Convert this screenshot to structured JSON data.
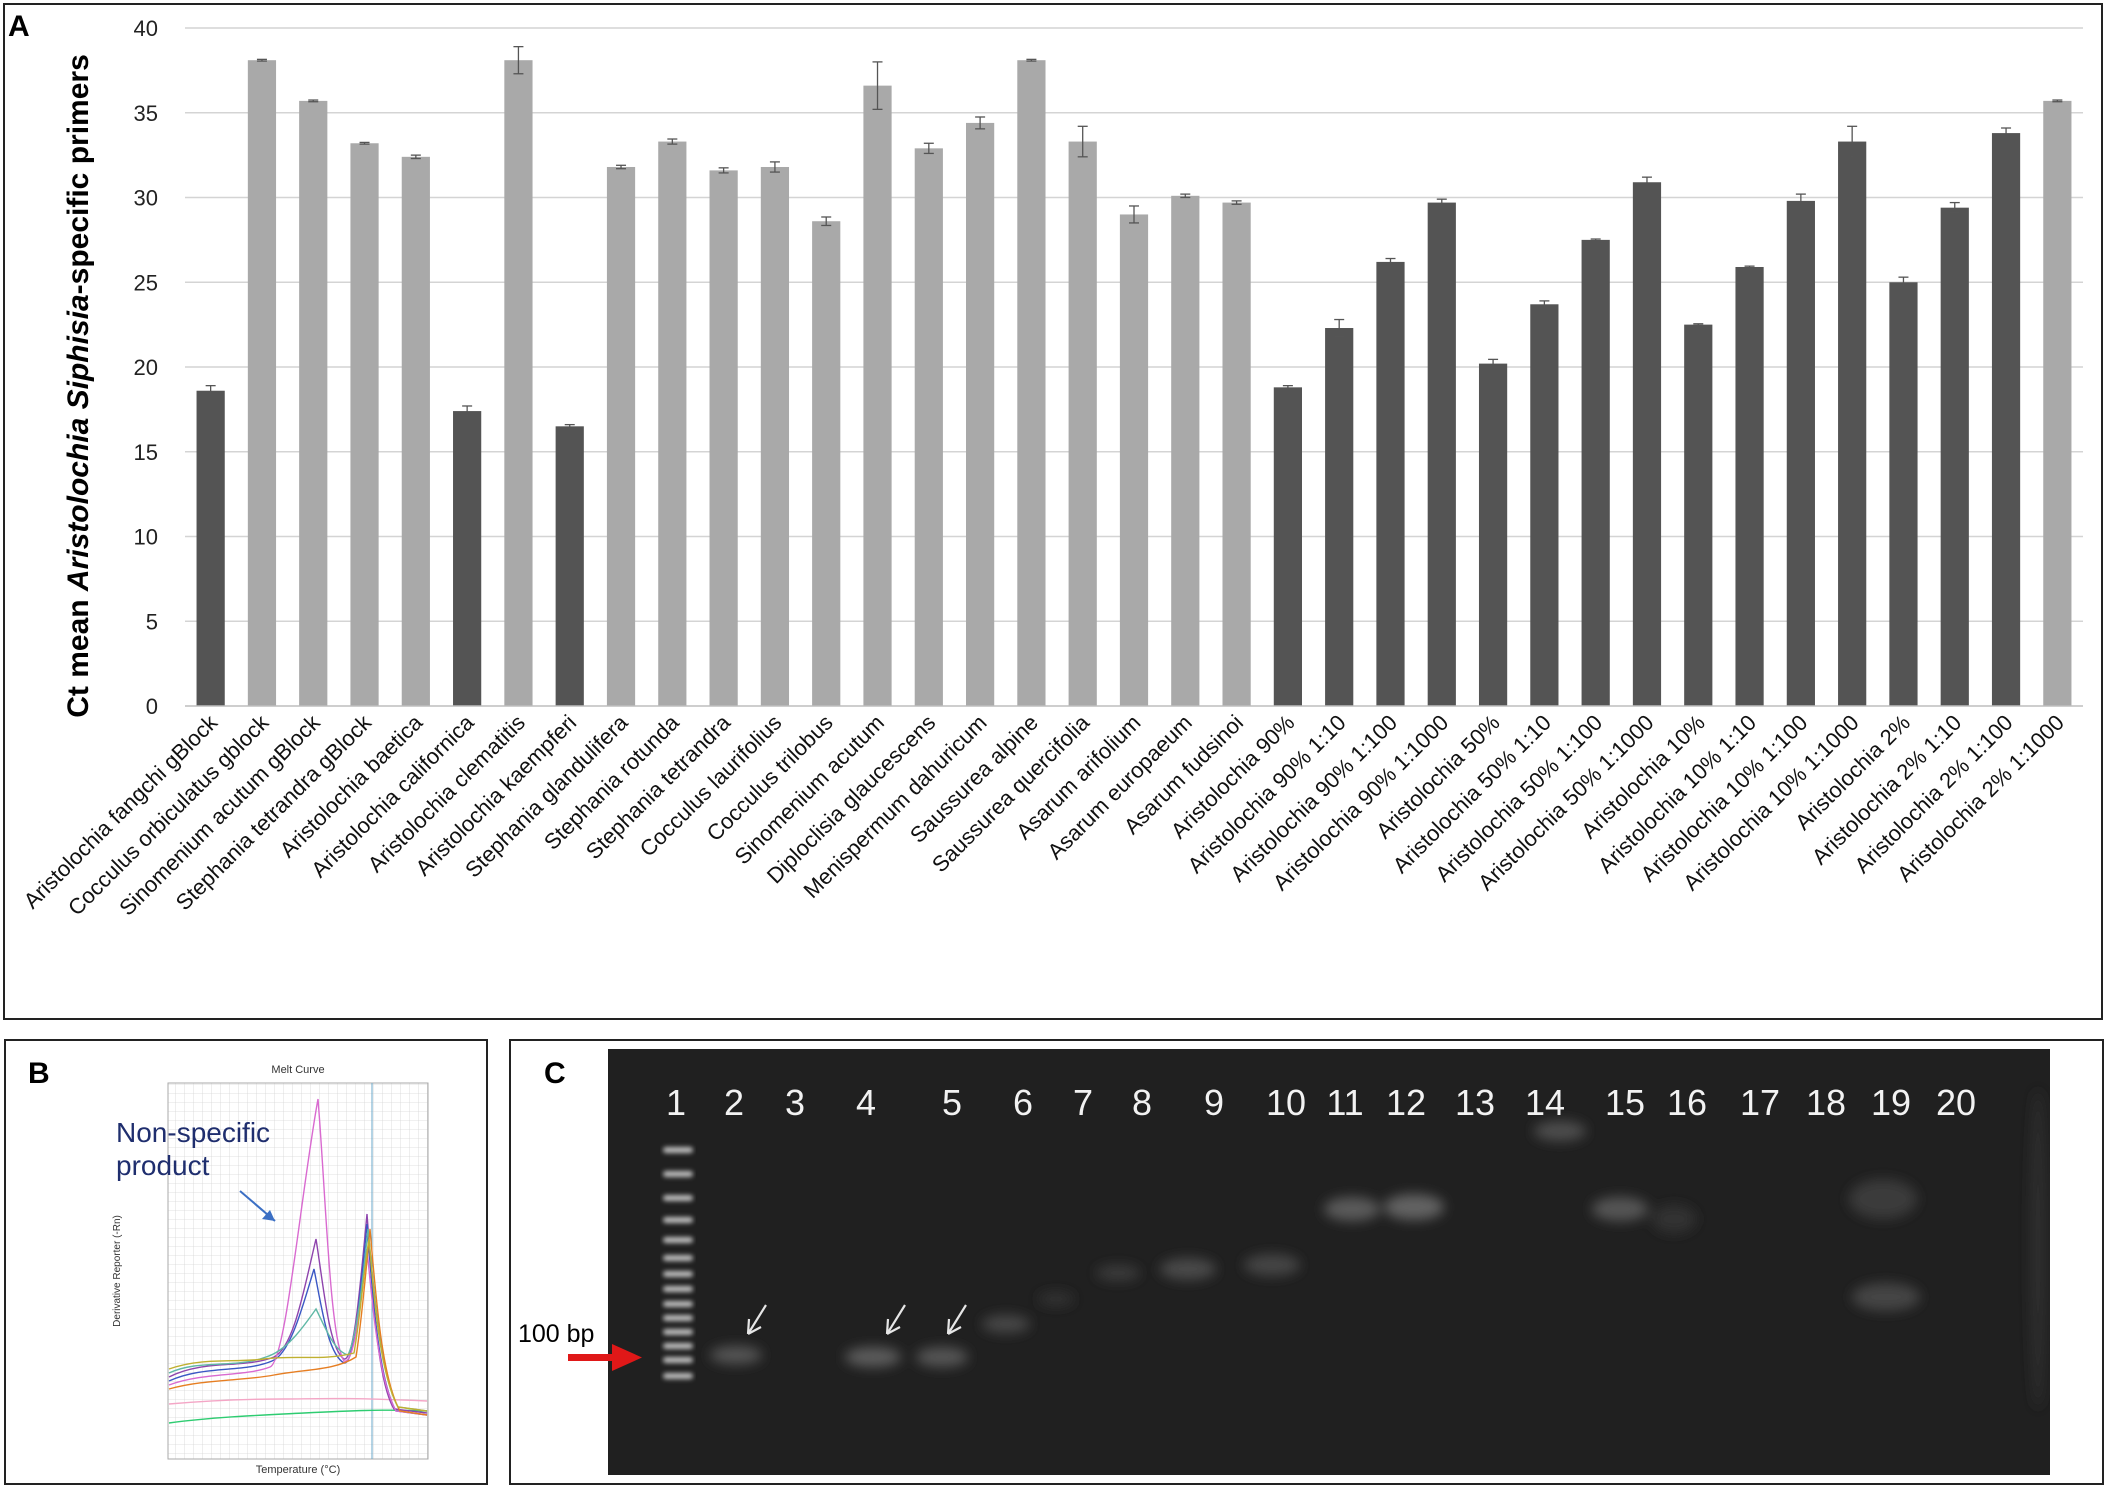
{
  "panels": {
    "a": "A",
    "b": "B",
    "c": "C"
  },
  "chart_data": {
    "type": "bar",
    "ylabel_parts": [
      "Ct mean ",
      "Aristolochia Siphisia",
      "-specific primers"
    ],
    "ylim": [
      0,
      40
    ],
    "yticks": [
      0,
      5,
      10,
      15,
      20,
      25,
      30,
      35,
      40
    ],
    "grid": true,
    "colors": {
      "dark": "#545454",
      "light": "#a9a9a9"
    },
    "categories": [
      "Aristolochia fangchi gBlock",
      "Cocculus orbiculatus gblock",
      "Sinomenium acutum gBlock",
      "Stephania tetrandra gBlock",
      "Aristolochia baetica",
      "Aristolochia californica",
      "Aristolochia clematitis",
      "Aristolochia kaempferi",
      "Stephania  glandulifera",
      "Stephania  rotunda",
      "Stephania tetrandra",
      "Cocculus  laurifolius",
      "Cocculus trilobus",
      "Sinomenium acutum",
      "Diploclisia glaucescens",
      "Menispermum dahuricum",
      "Saussurea alpine",
      "Saussurea quercifolia",
      "Asarum arifolium",
      "Asarum europaeum",
      "Asarum fudsinoi",
      "Aristolochia 90%",
      "Aristolochia 90% 1:10",
      "Aristolochia 90% 1:100",
      "Aristolochia 90% 1:1000",
      "Aristolochia 50%",
      "Aristolochia 50% 1:10",
      "Aristolochia 50% 1:100",
      "Aristolochia 50% 1:1000",
      "Aristolochia 10%",
      "Aristolochia 10% 1:10",
      "Aristolochia 10% 1:100",
      "Aristolochia 10% 1:1000",
      "Aristolochia 2%",
      "Aristolochia 2% 1:10",
      "Aristolochia 2% 1:100",
      "Aristolochia 2% 1:1000"
    ],
    "values": [
      18.6,
      38.1,
      35.7,
      33.2,
      32.4,
      17.4,
      38.1,
      16.5,
      31.8,
      33.3,
      31.6,
      31.8,
      28.6,
      36.6,
      32.9,
      34.4,
      38.1,
      33.3,
      29.0,
      30.1,
      29.7,
      18.8,
      22.3,
      26.2,
      29.7,
      20.2,
      23.7,
      27.5,
      30.9,
      22.5,
      25.9,
      29.8,
      33.3,
      25.0,
      29.4,
      33.8,
      35.7
    ],
    "errors": [
      0.3,
      0.05,
      0.05,
      0.05,
      0.1,
      0.3,
      0.8,
      0.1,
      0.1,
      0.15,
      0.15,
      0.3,
      0.25,
      1.4,
      0.3,
      0.35,
      0.05,
      0.9,
      0.5,
      0.1,
      0.1,
      0.1,
      0.5,
      0.2,
      0.2,
      0.25,
      0.2,
      0.05,
      0.3,
      0.05,
      0.05,
      0.4,
      0.9,
      0.3,
      0.3,
      0.3,
      0.05
    ],
    "shade": [
      "dark",
      "light",
      "light",
      "light",
      "light",
      "dark",
      "light",
      "dark",
      "light",
      "light",
      "light",
      "light",
      "light",
      "light",
      "light",
      "light",
      "light",
      "light",
      "light",
      "light",
      "light",
      "dark",
      "dark",
      "dark",
      "dark",
      "dark",
      "dark",
      "dark",
      "dark",
      "dark",
      "dark",
      "dark",
      "dark",
      "dark",
      "dark",
      "dark",
      "light"
    ]
  },
  "panel_b": {
    "title": "Melt Curve",
    "annotation_line1": "Non-specific",
    "annotation_line2": "product",
    "xlabel": "Temperature (°C)",
    "ylabel": "Derivative Reporter (-Rn)"
  },
  "panel_c": {
    "lanes": [
      "1",
      "2",
      "3",
      "4",
      "5",
      "6",
      "7",
      "8",
      "9",
      "10",
      "11",
      "12",
      "13",
      "14",
      "15",
      "16",
      "17",
      "18",
      "19",
      "20"
    ],
    "marker_label": "100 bp"
  }
}
